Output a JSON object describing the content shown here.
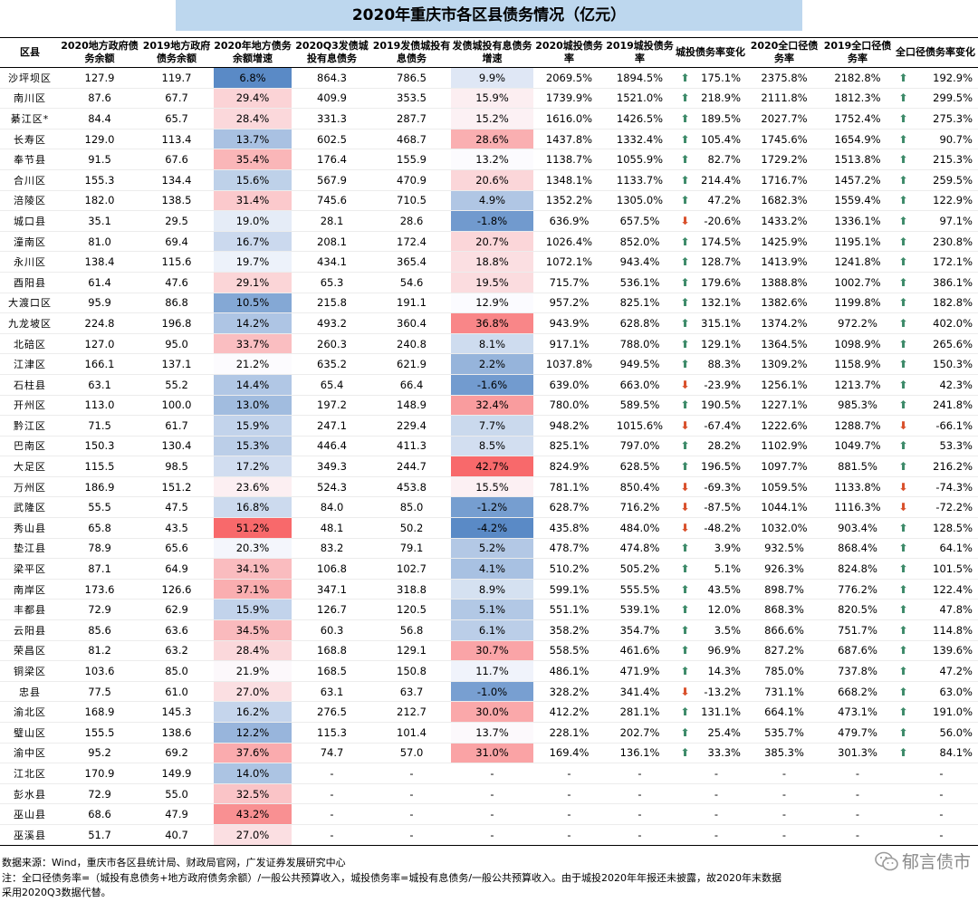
{
  "title": "2020年重庆市各区县债务情况（亿元）",
  "headers": [
    "区县",
    "2020地方政府债务余额",
    "2019地方政府债务余额",
    "2020年地方债务余额增速",
    "2020Q3发债城投有息债务",
    "2019发债城投有息债务",
    "发债城投有息债务增速",
    "2020城投债务率",
    "2019城投债务率",
    "城投债务率变化",
    "2020全口径债务率",
    "2019全口径债务率",
    "全口径债务率变化"
  ],
  "rows": [
    {
      "name": "沙坪坝区",
      "debt2020": "127.9",
      "debt2019": "119.7",
      "growth": "6.8%",
      "cbi2020": "864.3",
      "cbi2019": "786.5",
      "cbiGrowth": "9.9%",
      "ratio2020": "2069.5%",
      "ratio2019": "1894.5%",
      "ratioChg": "175.1%",
      "ratioDir": "up",
      "full2020": "2375.8%",
      "full2019": "2182.8%",
      "fullChg": "192.9%",
      "fullDir": "up"
    },
    {
      "name": "南川区",
      "debt2020": "87.6",
      "debt2019": "67.7",
      "growth": "29.4%",
      "cbi2020": "409.9",
      "cbi2019": "353.5",
      "cbiGrowth": "15.9%",
      "ratio2020": "1739.9%",
      "ratio2019": "1521.0%",
      "ratioChg": "218.9%",
      "ratioDir": "up",
      "full2020": "2111.8%",
      "full2019": "1812.3%",
      "fullChg": "299.5%",
      "fullDir": "up"
    },
    {
      "name": "綦江区*",
      "debt2020": "84.4",
      "debt2019": "65.7",
      "growth": "28.4%",
      "cbi2020": "331.3",
      "cbi2019": "287.7",
      "cbiGrowth": "15.2%",
      "ratio2020": "1616.0%",
      "ratio2019": "1426.5%",
      "ratioChg": "189.5%",
      "ratioDir": "up",
      "full2020": "2027.7%",
      "full2019": "1752.4%",
      "fullChg": "275.3%",
      "fullDir": "up"
    },
    {
      "name": "长寿区",
      "debt2020": "129.0",
      "debt2019": "113.4",
      "growth": "13.7%",
      "cbi2020": "602.5",
      "cbi2019": "468.7",
      "cbiGrowth": "28.6%",
      "ratio2020": "1437.8%",
      "ratio2019": "1332.4%",
      "ratioChg": "105.4%",
      "ratioDir": "up",
      "full2020": "1745.6%",
      "full2019": "1654.9%",
      "fullChg": "90.7%",
      "fullDir": "up"
    },
    {
      "name": "奉节县",
      "debt2020": "91.5",
      "debt2019": "67.6",
      "growth": "35.4%",
      "cbi2020": "176.4",
      "cbi2019": "155.9",
      "cbiGrowth": "13.2%",
      "ratio2020": "1138.7%",
      "ratio2019": "1055.9%",
      "ratioChg": "82.7%",
      "ratioDir": "up",
      "full2020": "1729.2%",
      "full2019": "1513.8%",
      "fullChg": "215.3%",
      "fullDir": "up"
    },
    {
      "name": "合川区",
      "debt2020": "155.3",
      "debt2019": "134.4",
      "growth": "15.6%",
      "cbi2020": "567.9",
      "cbi2019": "470.9",
      "cbiGrowth": "20.6%",
      "ratio2020": "1348.1%",
      "ratio2019": "1133.7%",
      "ratioChg": "214.4%",
      "ratioDir": "up",
      "full2020": "1716.7%",
      "full2019": "1457.2%",
      "fullChg": "259.5%",
      "fullDir": "up"
    },
    {
      "name": "涪陵区",
      "debt2020": "182.0",
      "debt2019": "138.5",
      "growth": "31.4%",
      "cbi2020": "745.6",
      "cbi2019": "710.5",
      "cbiGrowth": "4.9%",
      "ratio2020": "1352.2%",
      "ratio2019": "1305.0%",
      "ratioChg": "47.2%",
      "ratioDir": "up",
      "full2020": "1682.3%",
      "full2019": "1559.4%",
      "fullChg": "122.9%",
      "fullDir": "up"
    },
    {
      "name": "城口县",
      "debt2020": "35.1",
      "debt2019": "29.5",
      "growth": "19.0%",
      "cbi2020": "28.1",
      "cbi2019": "28.6",
      "cbiGrowth": "-1.8%",
      "ratio2020": "636.9%",
      "ratio2019": "657.5%",
      "ratioChg": "-20.6%",
      "ratioDir": "down",
      "full2020": "1433.2%",
      "full2019": "1336.1%",
      "fullChg": "97.1%",
      "fullDir": "up"
    },
    {
      "name": "潼南区",
      "debt2020": "81.0",
      "debt2019": "69.4",
      "growth": "16.7%",
      "cbi2020": "208.1",
      "cbi2019": "172.4",
      "cbiGrowth": "20.7%",
      "ratio2020": "1026.4%",
      "ratio2019": "852.0%",
      "ratioChg": "174.5%",
      "ratioDir": "up",
      "full2020": "1425.9%",
      "full2019": "1195.1%",
      "fullChg": "230.8%",
      "fullDir": "up"
    },
    {
      "name": "永川区",
      "debt2020": "138.4",
      "debt2019": "115.6",
      "growth": "19.7%",
      "cbi2020": "434.1",
      "cbi2019": "365.4",
      "cbiGrowth": "18.8%",
      "ratio2020": "1072.1%",
      "ratio2019": "943.4%",
      "ratioChg": "128.7%",
      "ratioDir": "up",
      "full2020": "1413.9%",
      "full2019": "1241.8%",
      "fullChg": "172.1%",
      "fullDir": "up"
    },
    {
      "name": "酉阳县",
      "debt2020": "61.4",
      "debt2019": "47.6",
      "growth": "29.1%",
      "cbi2020": "65.3",
      "cbi2019": "54.6",
      "cbiGrowth": "19.5%",
      "ratio2020": "715.7%",
      "ratio2019": "536.1%",
      "ratioChg": "179.6%",
      "ratioDir": "up",
      "full2020": "1388.8%",
      "full2019": "1002.7%",
      "fullChg": "386.1%",
      "fullDir": "up"
    },
    {
      "name": "大渡口区",
      "debt2020": "95.9",
      "debt2019": "86.8",
      "growth": "10.5%",
      "cbi2020": "215.8",
      "cbi2019": "191.1",
      "cbiGrowth": "12.9%",
      "ratio2020": "957.2%",
      "ratio2019": "825.1%",
      "ratioChg": "132.1%",
      "ratioDir": "up",
      "full2020": "1382.6%",
      "full2019": "1199.8%",
      "fullChg": "182.8%",
      "fullDir": "up"
    },
    {
      "name": "九龙坡区",
      "debt2020": "224.8",
      "debt2019": "196.8",
      "growth": "14.2%",
      "cbi2020": "493.2",
      "cbi2019": "360.4",
      "cbiGrowth": "36.8%",
      "ratio2020": "943.9%",
      "ratio2019": "628.8%",
      "ratioChg": "315.1%",
      "ratioDir": "up",
      "full2020": "1374.2%",
      "full2019": "972.2%",
      "fullChg": "402.0%",
      "fullDir": "up"
    },
    {
      "name": "北碚区",
      "debt2020": "127.0",
      "debt2019": "95.0",
      "growth": "33.7%",
      "cbi2020": "260.3",
      "cbi2019": "240.8",
      "cbiGrowth": "8.1%",
      "ratio2020": "917.1%",
      "ratio2019": "788.0%",
      "ratioChg": "129.1%",
      "ratioDir": "up",
      "full2020": "1364.5%",
      "full2019": "1098.9%",
      "fullChg": "265.6%",
      "fullDir": "up"
    },
    {
      "name": "江津区",
      "debt2020": "166.1",
      "debt2019": "137.1",
      "growth": "21.2%",
      "cbi2020": "635.2",
      "cbi2019": "621.9",
      "cbiGrowth": "2.2%",
      "ratio2020": "1037.8%",
      "ratio2019": "949.5%",
      "ratioChg": "88.3%",
      "ratioDir": "up",
      "full2020": "1309.2%",
      "full2019": "1158.9%",
      "fullChg": "150.3%",
      "fullDir": "up"
    },
    {
      "name": "石柱县",
      "debt2020": "63.1",
      "debt2019": "55.2",
      "growth": "14.4%",
      "cbi2020": "65.4",
      "cbi2019": "66.4",
      "cbiGrowth": "-1.6%",
      "ratio2020": "639.0%",
      "ratio2019": "663.0%",
      "ratioChg": "-23.9%",
      "ratioDir": "down",
      "full2020": "1256.1%",
      "full2019": "1213.7%",
      "fullChg": "42.3%",
      "fullDir": "up"
    },
    {
      "name": "开州区",
      "debt2020": "113.0",
      "debt2019": "100.0",
      "growth": "13.0%",
      "cbi2020": "197.2",
      "cbi2019": "148.9",
      "cbiGrowth": "32.4%",
      "ratio2020": "780.0%",
      "ratio2019": "589.5%",
      "ratioChg": "190.5%",
      "ratioDir": "up",
      "full2020": "1227.1%",
      "full2019": "985.3%",
      "fullChg": "241.8%",
      "fullDir": "up"
    },
    {
      "name": "黔江区",
      "debt2020": "71.5",
      "debt2019": "61.7",
      "growth": "15.9%",
      "cbi2020": "247.1",
      "cbi2019": "229.4",
      "cbiGrowth": "7.7%",
      "ratio2020": "948.2%",
      "ratio2019": "1015.6%",
      "ratioChg": "-67.4%",
      "ratioDir": "down",
      "full2020": "1222.6%",
      "full2019": "1288.7%",
      "fullChg": "-66.1%",
      "fullDir": "down"
    },
    {
      "name": "巴南区",
      "debt2020": "150.3",
      "debt2019": "130.4",
      "growth": "15.3%",
      "cbi2020": "446.4",
      "cbi2019": "411.3",
      "cbiGrowth": "8.5%",
      "ratio2020": "825.1%",
      "ratio2019": "797.0%",
      "ratioChg": "28.2%",
      "ratioDir": "up",
      "full2020": "1102.9%",
      "full2019": "1049.7%",
      "fullChg": "53.3%",
      "fullDir": "up"
    },
    {
      "name": "大足区",
      "debt2020": "115.5",
      "debt2019": "98.5",
      "growth": "17.2%",
      "cbi2020": "349.3",
      "cbi2019": "244.7",
      "cbiGrowth": "42.7%",
      "ratio2020": "824.9%",
      "ratio2019": "628.5%",
      "ratioChg": "196.5%",
      "ratioDir": "up",
      "full2020": "1097.7%",
      "full2019": "881.5%",
      "fullChg": "216.2%",
      "fullDir": "up"
    },
    {
      "name": "万州区",
      "debt2020": "186.9",
      "debt2019": "151.2",
      "growth": "23.6%",
      "cbi2020": "524.3",
      "cbi2019": "453.8",
      "cbiGrowth": "15.5%",
      "ratio2020": "781.1%",
      "ratio2019": "850.4%",
      "ratioChg": "-69.3%",
      "ratioDir": "down",
      "full2020": "1059.5%",
      "full2019": "1133.8%",
      "fullChg": "-74.3%",
      "fullDir": "down"
    },
    {
      "name": "武隆区",
      "debt2020": "55.5",
      "debt2019": "47.5",
      "growth": "16.8%",
      "cbi2020": "84.0",
      "cbi2019": "85.0",
      "cbiGrowth": "-1.2%",
      "ratio2020": "628.7%",
      "ratio2019": "716.2%",
      "ratioChg": "-87.5%",
      "ratioDir": "down",
      "full2020": "1044.1%",
      "full2019": "1116.3%",
      "fullChg": "-72.2%",
      "fullDir": "down"
    },
    {
      "name": "秀山县",
      "debt2020": "65.8",
      "debt2019": "43.5",
      "growth": "51.2%",
      "cbi2020": "48.1",
      "cbi2019": "50.2",
      "cbiGrowth": "-4.2%",
      "ratio2020": "435.8%",
      "ratio2019": "484.0%",
      "ratioChg": "-48.2%",
      "ratioDir": "down",
      "full2020": "1032.0%",
      "full2019": "903.4%",
      "fullChg": "128.5%",
      "fullDir": "up"
    },
    {
      "name": "垫江县",
      "debt2020": "78.9",
      "debt2019": "65.6",
      "growth": "20.3%",
      "cbi2020": "83.2",
      "cbi2019": "79.1",
      "cbiGrowth": "5.2%",
      "ratio2020": "478.7%",
      "ratio2019": "474.8%",
      "ratioChg": "3.9%",
      "ratioDir": "up",
      "full2020": "932.5%",
      "full2019": "868.4%",
      "fullChg": "64.1%",
      "fullDir": "up"
    },
    {
      "name": "梁平区",
      "debt2020": "87.1",
      "debt2019": "64.9",
      "growth": "34.1%",
      "cbi2020": "106.8",
      "cbi2019": "102.7",
      "cbiGrowth": "4.1%",
      "ratio2020": "510.2%",
      "ratio2019": "505.2%",
      "ratioChg": "5.1%",
      "ratioDir": "up",
      "full2020": "926.3%",
      "full2019": "824.8%",
      "fullChg": "101.5%",
      "fullDir": "up"
    },
    {
      "name": "南岸区",
      "debt2020": "173.6",
      "debt2019": "126.6",
      "growth": "37.1%",
      "cbi2020": "347.1",
      "cbi2019": "318.8",
      "cbiGrowth": "8.9%",
      "ratio2020": "599.1%",
      "ratio2019": "555.5%",
      "ratioChg": "43.5%",
      "ratioDir": "up",
      "full2020": "898.7%",
      "full2019": "776.2%",
      "fullChg": "122.4%",
      "fullDir": "up"
    },
    {
      "name": "丰都县",
      "debt2020": "72.9",
      "debt2019": "62.9",
      "growth": "15.9%",
      "cbi2020": "126.7",
      "cbi2019": "120.5",
      "cbiGrowth": "5.1%",
      "ratio2020": "551.1%",
      "ratio2019": "539.1%",
      "ratioChg": "12.0%",
      "ratioDir": "up",
      "full2020": "868.3%",
      "full2019": "820.5%",
      "fullChg": "47.8%",
      "fullDir": "up"
    },
    {
      "name": "云阳县",
      "debt2020": "85.6",
      "debt2019": "63.6",
      "growth": "34.5%",
      "cbi2020": "60.3",
      "cbi2019": "56.8",
      "cbiGrowth": "6.1%",
      "ratio2020": "358.2%",
      "ratio2019": "354.7%",
      "ratioChg": "3.5%",
      "ratioDir": "up",
      "full2020": "866.6%",
      "full2019": "751.7%",
      "fullChg": "114.8%",
      "fullDir": "up"
    },
    {
      "name": "荣昌区",
      "debt2020": "81.2",
      "debt2019": "63.2",
      "growth": "28.4%",
      "cbi2020": "168.8",
      "cbi2019": "129.1",
      "cbiGrowth": "30.7%",
      "ratio2020": "558.5%",
      "ratio2019": "461.6%",
      "ratioChg": "96.9%",
      "ratioDir": "up",
      "full2020": "827.2%",
      "full2019": "687.6%",
      "fullChg": "139.6%",
      "fullDir": "up"
    },
    {
      "name": "铜梁区",
      "debt2020": "103.6",
      "debt2019": "85.0",
      "growth": "21.9%",
      "cbi2020": "168.5",
      "cbi2019": "150.8",
      "cbiGrowth": "11.7%",
      "ratio2020": "486.1%",
      "ratio2019": "471.9%",
      "ratioChg": "14.3%",
      "ratioDir": "up",
      "full2020": "785.0%",
      "full2019": "737.8%",
      "fullChg": "47.2%",
      "fullDir": "up"
    },
    {
      "name": "忠县",
      "debt2020": "77.5",
      "debt2019": "61.0",
      "growth": "27.0%",
      "cbi2020": "63.1",
      "cbi2019": "63.7",
      "cbiGrowth": "-1.0%",
      "ratio2020": "328.2%",
      "ratio2019": "341.4%",
      "ratioChg": "-13.2%",
      "ratioDir": "down",
      "full2020": "731.1%",
      "full2019": "668.2%",
      "fullChg": "63.0%",
      "fullDir": "up"
    },
    {
      "name": "渝北区",
      "debt2020": "168.9",
      "debt2019": "145.3",
      "growth": "16.2%",
      "cbi2020": "276.5",
      "cbi2019": "212.7",
      "cbiGrowth": "30.0%",
      "ratio2020": "412.2%",
      "ratio2019": "281.1%",
      "ratioChg": "131.1%",
      "ratioDir": "up",
      "full2020": "664.1%",
      "full2019": "473.1%",
      "fullChg": "191.0%",
      "fullDir": "up"
    },
    {
      "name": "璧山区",
      "debt2020": "155.5",
      "debt2019": "138.6",
      "growth": "12.2%",
      "cbi2020": "115.3",
      "cbi2019": "101.4",
      "cbiGrowth": "13.7%",
      "ratio2020": "228.1%",
      "ratio2019": "202.7%",
      "ratioChg": "25.4%",
      "ratioDir": "up",
      "full2020": "535.7%",
      "full2019": "479.7%",
      "fullChg": "56.0%",
      "fullDir": "up"
    },
    {
      "name": "渝中区",
      "debt2020": "95.2",
      "debt2019": "69.2",
      "growth": "37.6%",
      "cbi2020": "74.7",
      "cbi2019": "57.0",
      "cbiGrowth": "31.0%",
      "ratio2020": "169.4%",
      "ratio2019": "136.1%",
      "ratioChg": "33.3%",
      "ratioDir": "up",
      "full2020": "385.3%",
      "full2019": "301.3%",
      "fullChg": "84.1%",
      "fullDir": "up"
    },
    {
      "name": "江北区",
      "debt2020": "170.9",
      "debt2019": "149.9",
      "growth": "14.0%",
      "cbi2020": "-",
      "cbi2019": "-",
      "cbiGrowth": "-",
      "ratio2020": "-",
      "ratio2019": "-",
      "ratioChg": "-",
      "ratioDir": "none",
      "full2020": "-",
      "full2019": "-",
      "fullChg": "-",
      "fullDir": "none"
    },
    {
      "name": "彭水县",
      "debt2020": "72.9",
      "debt2019": "55.0",
      "growth": "32.5%",
      "cbi2020": "-",
      "cbi2019": "-",
      "cbiGrowth": "-",
      "ratio2020": "-",
      "ratio2019": "-",
      "ratioChg": "-",
      "ratioDir": "none",
      "full2020": "-",
      "full2019": "-",
      "fullChg": "-",
      "fullDir": "none"
    },
    {
      "name": "巫山县",
      "debt2020": "68.6",
      "debt2019": "47.9",
      "growth": "43.2%",
      "cbi2020": "-",
      "cbi2019": "-",
      "cbiGrowth": "-",
      "ratio2020": "-",
      "ratio2019": "-",
      "ratioChg": "-",
      "ratioDir": "none",
      "full2020": "-",
      "full2019": "-",
      "fullChg": "-",
      "fullDir": "none"
    },
    {
      "name": "巫溪县",
      "debt2020": "51.7",
      "debt2019": "40.7",
      "growth": "27.0%",
      "cbi2020": "-",
      "cbi2019": "-",
      "cbiGrowth": "-",
      "ratio2020": "-",
      "ratio2019": "-",
      "ratioChg": "-",
      "ratioDir": "none",
      "full2020": "-",
      "full2019": "-",
      "fullChg": "-",
      "fullDir": "none"
    }
  ],
  "footnotes": {
    "source": "数据来源：Wind，重庆市各区县统计局、财政局官网，广发证券发展研究中心",
    "note1": "注：全口径债务率=（城投有息债务+地方政府债务余额）/一般公共预算收入，城投债务率=城投有息债务/一般公共预算收入。由于城投2020年年报还未披露，故2020年末数据",
    "note2": "采用2020Q3数据代替。"
  },
  "brand": "郁言债市",
  "colors": {
    "arrowUp": "#3e8b6a",
    "arrowDown": "#d9512c",
    "heatRed": "#f8696b",
    "heatBlue": "#5a8ac6",
    "titleBg": "#bdd7ee"
  },
  "icons": {
    "up": "arrow-up-icon",
    "down": "arrow-down-icon",
    "brand": "wechat-icon"
  }
}
